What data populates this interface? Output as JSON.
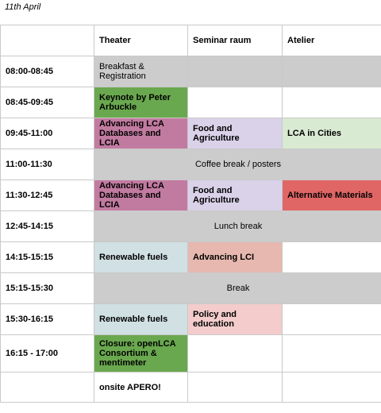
{
  "date": "11th April",
  "columns": [
    "Theater",
    "Seminar raum",
    "Atelier"
  ],
  "rows": [
    {
      "time": "08:00-08:45",
      "theater": "Breakfast & Registration"
    },
    {
      "time": "08:45-09:45",
      "theater": "Keynote by Peter Arbuckle"
    },
    {
      "time": "09:45-11:00",
      "theater": "Advancing LCA Databases and LCIA",
      "seminar": "Food and Agriculture",
      "atelier": "LCA in Cities"
    },
    {
      "time": "11:00-11:30",
      "span": "Coffee break / posters"
    },
    {
      "time": "11:30-12:45",
      "theater": "Advancing LCA Databases and LCIA",
      "seminar": "Food and Agriculture",
      "atelier": "Alternative Materials"
    },
    {
      "time": "12:45-14:15",
      "span": "Lunch break"
    },
    {
      "time": "14:15-15:15",
      "theater": "Renewable fuels",
      "seminar": "Advancing LCI"
    },
    {
      "time": "15:15-15:30",
      "span": "Break"
    },
    {
      "time": "15:30-16:15",
      "theater": "Renewable fuels",
      "seminar": "Policy and education"
    },
    {
      "time": "16:15 - 17:00",
      "theater": "Closure: openLCA Consortium & mentimeter"
    },
    {
      "time": "",
      "theater": "onsite APERO!"
    }
  ],
  "colors": {
    "grey": "#cccccc",
    "green": "#6aa84f",
    "pink": "#c27ba0",
    "lavender": "#d9d2e9",
    "light_green": "#d9ead3",
    "red": "#e06666",
    "light_blue": "#d0e0e3",
    "salmon": "#e6b8af",
    "light_pink": "#f4cccc"
  }
}
